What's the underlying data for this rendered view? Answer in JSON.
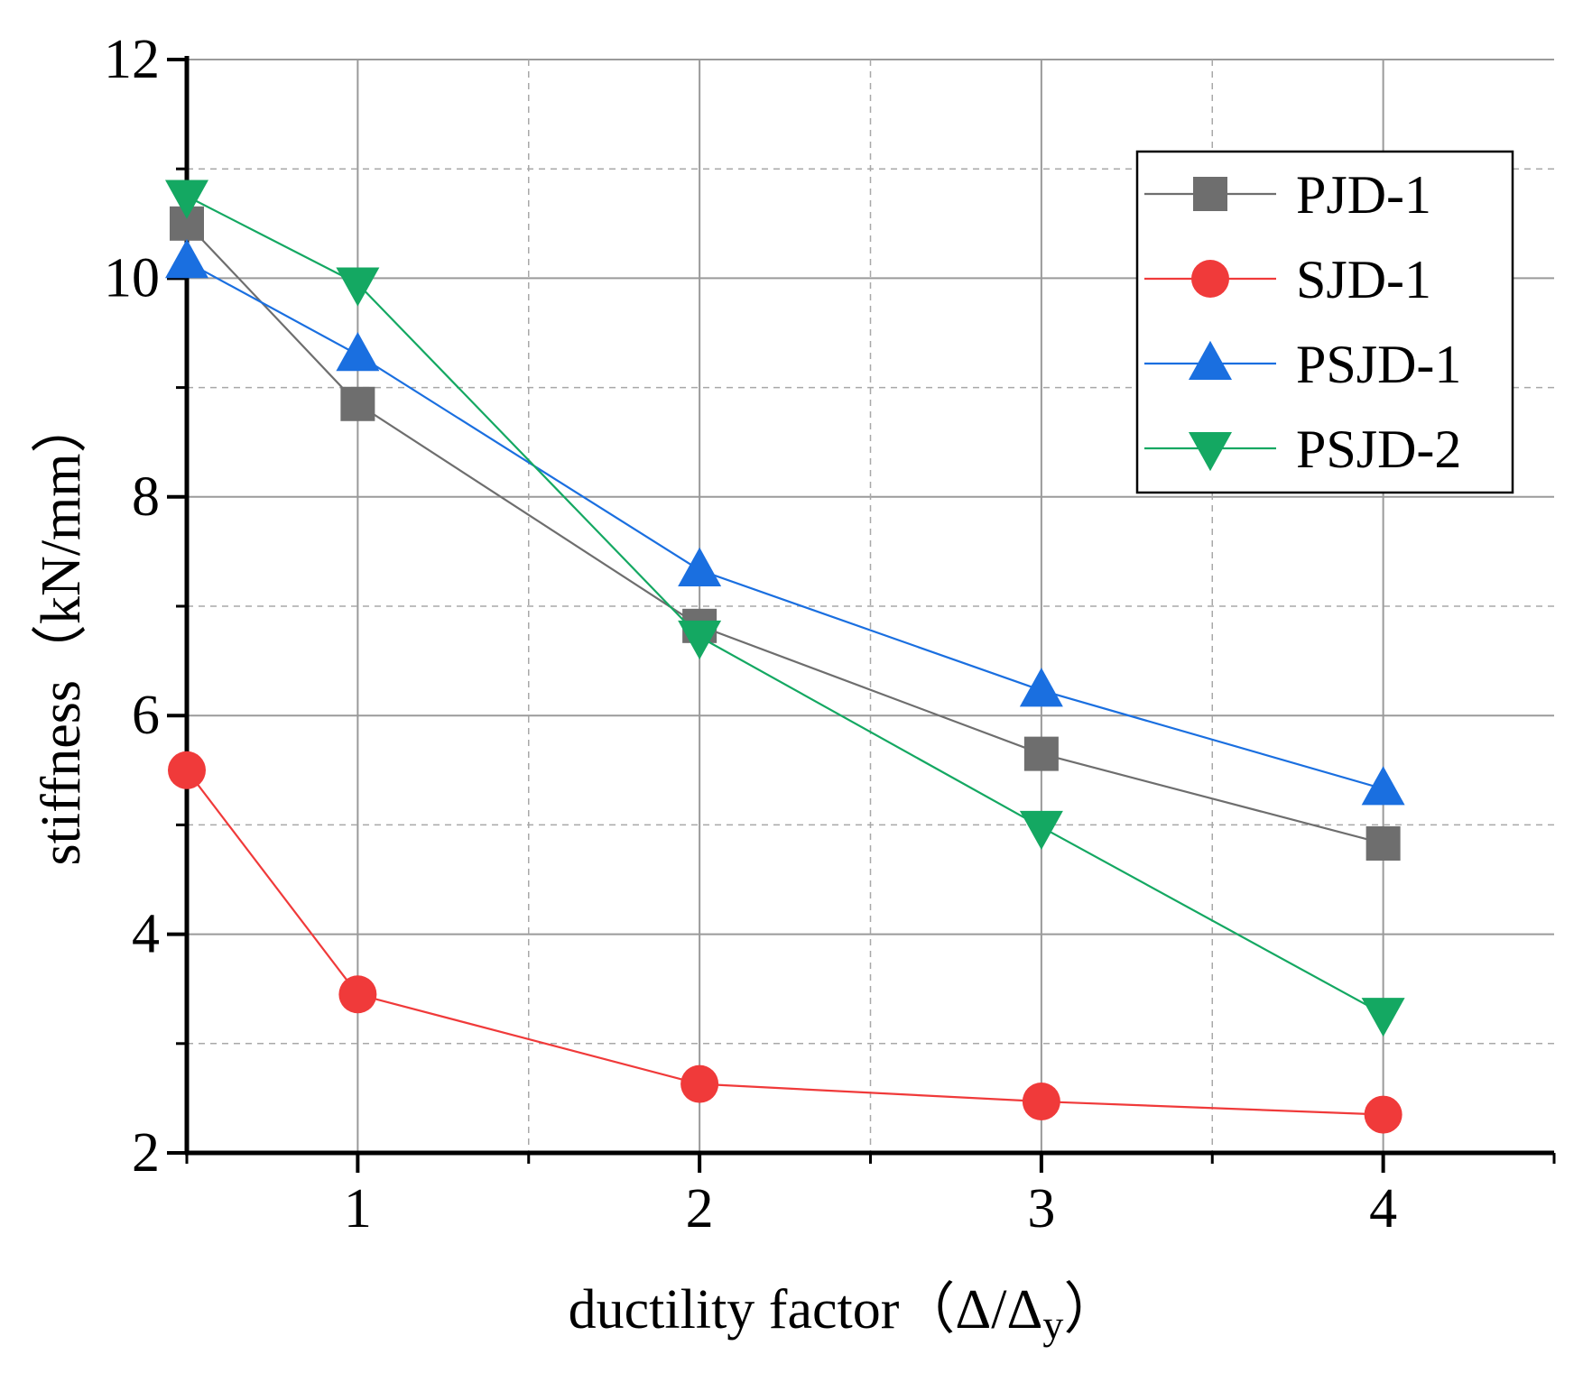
{
  "chart_data": {
    "type": "line",
    "title": "",
    "xlabel": "ductility factor（Δ/Δy）",
    "ylabel": "stiffness（kN/mm）",
    "xlim": [
      0.5,
      4.5
    ],
    "ylim": [
      2,
      12
    ],
    "x_ticks": [
      1,
      2,
      3,
      4
    ],
    "x_tick_labels": [
      "1",
      "2",
      "3",
      "4"
    ],
    "y_ticks": [
      2,
      4,
      6,
      8,
      10,
      12
    ],
    "y_tick_labels": [
      "2",
      "4",
      "6",
      "8",
      "10",
      "12"
    ],
    "grid": true,
    "legend_position": "top-right",
    "series": [
      {
        "name": "PJD-1",
        "marker": "square",
        "color": "#6e6e6e",
        "x": [
          0.5,
          1,
          2,
          3,
          4
        ],
        "values": [
          10.5,
          8.85,
          6.82,
          5.65,
          4.83
        ]
      },
      {
        "name": "SJD-1",
        "marker": "circle",
        "color": "#f03a3a",
        "x": [
          0.5,
          1,
          2,
          3,
          4
        ],
        "values": [
          5.5,
          3.45,
          2.63,
          2.47,
          2.35
        ]
      },
      {
        "name": "PSJD-1",
        "marker": "triangle-up",
        "color": "#1a6fe0",
        "x": [
          0.5,
          1,
          2,
          3,
          4
        ],
        "values": [
          10.15,
          9.3,
          7.33,
          6.23,
          5.33
        ]
      },
      {
        "name": "PSJD-2",
        "marker": "triangle-down",
        "color": "#14a862",
        "x": [
          0.5,
          1,
          2,
          3,
          4
        ],
        "values": [
          10.75,
          9.95,
          6.72,
          4.98,
          3.27
        ]
      }
    ]
  }
}
